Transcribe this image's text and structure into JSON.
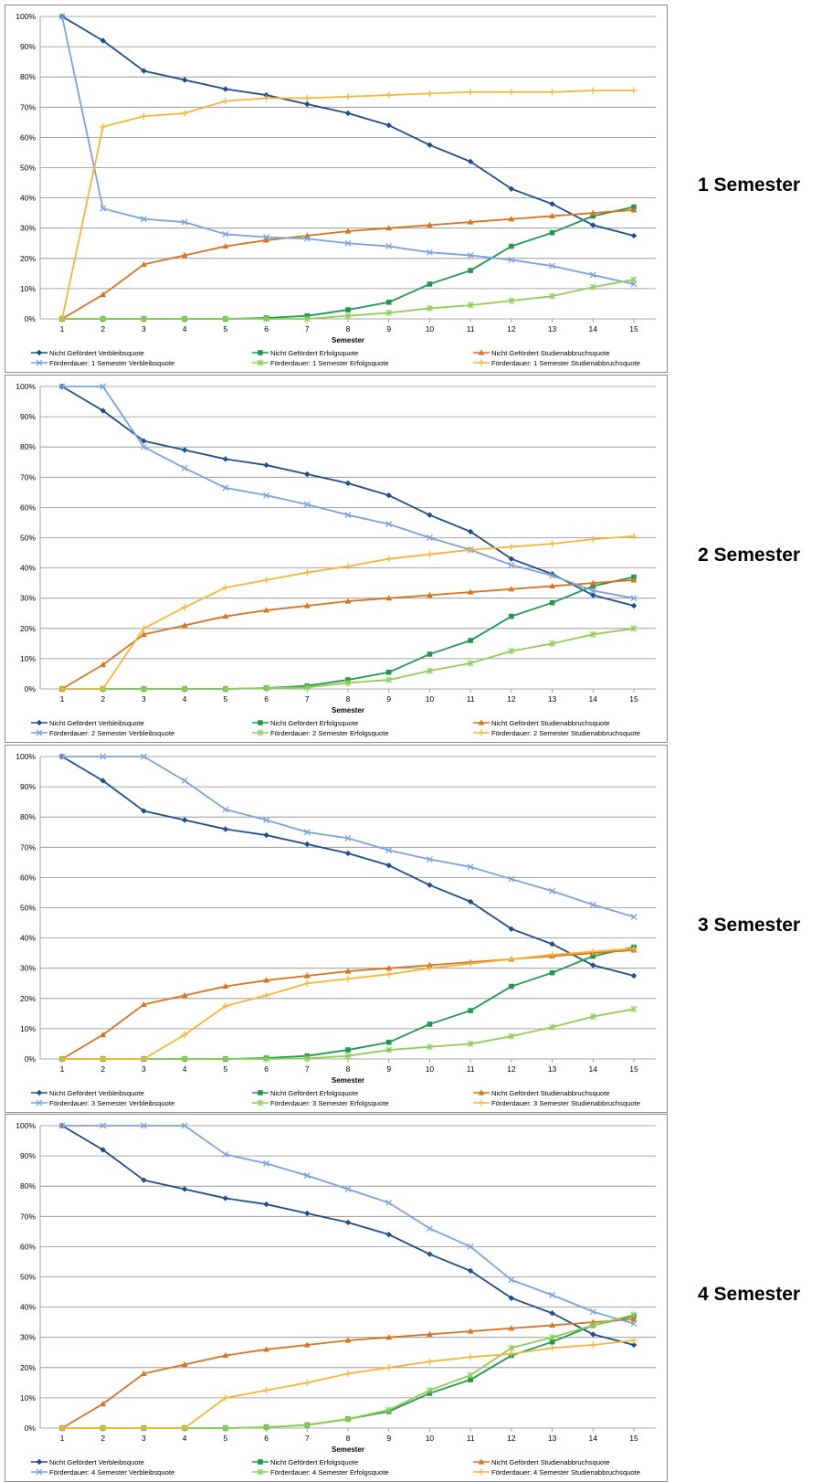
{
  "colors": {
    "nicht_verbleib": "#1f4e8c",
    "nicht_erfolg": "#1f9a4c",
    "nicht_abbruch": "#d9731e",
    "f_verbleib": "#7aa2dc",
    "f_erfolg": "#8fce55",
    "f_abbruch": "#f7b538",
    "grid": "#8c8c8c"
  },
  "chart_data": [
    {
      "type": "line",
      "side_label": "1 Semester",
      "xlabel": "Semester",
      "ylim": [
        0,
        100
      ],
      "yticks": [
        "0%",
        "10%",
        "20%",
        "30%",
        "40%",
        "50%",
        "60%",
        "70%",
        "80%",
        "90%",
        "100%"
      ],
      "x": [
        1,
        2,
        3,
        4,
        5,
        6,
        7,
        8,
        9,
        10,
        11,
        12,
        13,
        14,
        15
      ],
      "legend": "bottom",
      "series": [
        {
          "name": "Nicht Gefördert Verbleibsquote",
          "color": "nicht_verbleib",
          "marker": "diamond",
          "values": [
            100,
            92,
            82,
            79,
            76,
            74,
            71,
            68,
            64,
            57.5,
            52,
            43,
            38,
            31,
            27.5
          ]
        },
        {
          "name": "Nicht Gefördert Erfolgsquote",
          "color": "nicht_erfolg",
          "marker": "square",
          "values": [
            0,
            0,
            0,
            0,
            0,
            0.3,
            1,
            3,
            5.5,
            11.5,
            16,
            24,
            28.5,
            34,
            37
          ]
        },
        {
          "name": "Nicht Gefördert Studienabbruchsquote",
          "color": "nicht_abbruch",
          "marker": "triangle",
          "values": [
            0,
            8,
            18,
            21,
            24,
            26,
            27.5,
            29,
            30,
            31,
            32,
            33,
            34,
            35,
            36
          ]
        },
        {
          "name": "Förderdauer: 1 Semester Verbleibsquote",
          "color": "f_verbleib",
          "marker": "x",
          "values": [
            100,
            36.5,
            33,
            32,
            28,
            27,
            26.5,
            25,
            24,
            22,
            21,
            19.5,
            17.5,
            14.5,
            11.5
          ]
        },
        {
          "name": "Förderdauer: 1 Semester Erfolgsquote",
          "color": "f_erfolg",
          "marker": "star",
          "values": [
            0,
            0,
            0,
            0,
            0,
            0,
            0,
            1,
            2,
            3.5,
            4.5,
            6,
            7.5,
            10.5,
            13
          ]
        },
        {
          "name": "Förderdauer: 1 Semester Studienabbruchsquote",
          "color": "f_abbruch",
          "marker": "plus",
          "values": [
            0,
            63.5,
            67,
            68,
            72,
            73,
            73,
            73.5,
            74,
            74.5,
            75,
            75,
            75,
            75.5,
            75.5
          ]
        }
      ]
    },
    {
      "type": "line",
      "side_label": "2 Semester",
      "xlabel": "Semester",
      "ylim": [
        0,
        100
      ],
      "yticks": [
        "0%",
        "10%",
        "20%",
        "30%",
        "40%",
        "50%",
        "60%",
        "70%",
        "80%",
        "90%",
        "100%"
      ],
      "x": [
        1,
        2,
        3,
        4,
        5,
        6,
        7,
        8,
        9,
        10,
        11,
        12,
        13,
        14,
        15
      ],
      "legend": "bottom",
      "series": [
        {
          "name": "Nicht Gefördert Verbleibsquote",
          "color": "nicht_verbleib",
          "marker": "diamond",
          "values": [
            100,
            92,
            82,
            79,
            76,
            74,
            71,
            68,
            64,
            57.5,
            52,
            43,
            38,
            31,
            27.5
          ]
        },
        {
          "name": "Nicht Gefördert Erfolgsquote",
          "color": "nicht_erfolg",
          "marker": "square",
          "values": [
            0,
            0,
            0,
            0,
            0,
            0.3,
            1,
            3,
            5.5,
            11.5,
            16,
            24,
            28.5,
            34,
            37
          ]
        },
        {
          "name": "Nicht Gefördert Studienabbruchsquote",
          "color": "nicht_abbruch",
          "marker": "triangle",
          "values": [
            0,
            8,
            18,
            21,
            24,
            26,
            27.5,
            29,
            30,
            31,
            32,
            33,
            34,
            35,
            36
          ]
        },
        {
          "name": "Förderdauer: 2 Semester Verbleibsquote",
          "color": "f_verbleib",
          "marker": "x",
          "values": [
            100,
            100,
            80,
            73,
            66.5,
            64,
            61,
            57.5,
            54.5,
            50,
            46,
            41,
            37.5,
            32.5,
            30
          ]
        },
        {
          "name": "Förderdauer: 2 Semester Erfolgsquote",
          "color": "f_erfolg",
          "marker": "star",
          "values": [
            0,
            0,
            0,
            0,
            0,
            0.3,
            0.5,
            2,
            3,
            6,
            8.5,
            12.5,
            15,
            18,
            20
          ]
        },
        {
          "name": "Förderdauer: 2 Semester Studienabbruchsquote",
          "color": "f_abbruch",
          "marker": "plus",
          "values": [
            0,
            0,
            20,
            27,
            33.5,
            36,
            38.5,
            40.5,
            43,
            44.5,
            46,
            47,
            48,
            49.5,
            50.5
          ]
        }
      ]
    },
    {
      "type": "line",
      "side_label": "3 Semester",
      "xlabel": "Semester",
      "ylim": [
        0,
        100
      ],
      "yticks": [
        "0%",
        "10%",
        "20%",
        "30%",
        "40%",
        "50%",
        "60%",
        "70%",
        "80%",
        "90%",
        "100%"
      ],
      "x": [
        1,
        2,
        3,
        4,
        5,
        6,
        7,
        8,
        9,
        10,
        11,
        12,
        13,
        14,
        15
      ],
      "legend": "bottom",
      "series": [
        {
          "name": "Nicht Gefördert Verbleibsquote",
          "color": "nicht_verbleib",
          "marker": "diamond",
          "values": [
            100,
            92,
            82,
            79,
            76,
            74,
            71,
            68,
            64,
            57.5,
            52,
            43,
            38,
            31,
            27.5
          ]
        },
        {
          "name": "Nicht Gefördert Erfolgsquote",
          "color": "nicht_erfolg",
          "marker": "square",
          "values": [
            0,
            0,
            0,
            0,
            0,
            0.3,
            1,
            3,
            5.5,
            11.5,
            16,
            24,
            28.5,
            34,
            37
          ]
        },
        {
          "name": "Nicht Gefördert Studienabbruchsquote",
          "color": "nicht_abbruch",
          "marker": "triangle",
          "values": [
            0,
            8,
            18,
            21,
            24,
            26,
            27.5,
            29,
            30,
            31,
            32,
            33,
            34,
            35,
            36
          ]
        },
        {
          "name": "Förderdauer: 3 Semester Verbleibsquote",
          "color": "f_verbleib",
          "marker": "x",
          "values": [
            100,
            100,
            100,
            92,
            82.5,
            79,
            75,
            73,
            69,
            66,
            63.5,
            59.5,
            55.5,
            51,
            47
          ]
        },
        {
          "name": "Förderdauer: 3 Semester Erfolgsquote",
          "color": "f_erfolg",
          "marker": "star",
          "values": [
            0,
            0,
            0,
            0,
            0,
            0,
            0.2,
            1,
            3,
            4,
            5,
            7.5,
            10.5,
            14,
            16.5
          ]
        },
        {
          "name": "Förderdauer: 3 Semester Studienabbruchsquote",
          "color": "f_abbruch",
          "marker": "plus",
          "values": [
            0,
            0,
            0,
            8,
            17.5,
            21,
            25,
            26.5,
            28,
            30,
            31.5,
            33,
            34.5,
            35.5,
            36.5
          ]
        }
      ]
    },
    {
      "type": "line",
      "side_label": "4 Semester",
      "xlabel": "Semester",
      "ylim": [
        0,
        100
      ],
      "yticks": [
        "0%",
        "10%",
        "20%",
        "30%",
        "40%",
        "50%",
        "60%",
        "70%",
        "80%",
        "90%",
        "100%"
      ],
      "x": [
        1,
        2,
        3,
        4,
        5,
        6,
        7,
        8,
        9,
        10,
        11,
        12,
        13,
        14,
        15
      ],
      "legend": "bottom",
      "series": [
        {
          "name": "Nicht Gefördert Verbleibsquote",
          "color": "nicht_verbleib",
          "marker": "diamond",
          "values": [
            100,
            92,
            82,
            79,
            76,
            74,
            71,
            68,
            64,
            57.5,
            52,
            43,
            38,
            31,
            27.5
          ]
        },
        {
          "name": "Nicht Gefördert Erfolgsquote",
          "color": "nicht_erfolg",
          "marker": "square",
          "values": [
            0,
            0,
            0,
            0,
            0,
            0.3,
            1,
            3,
            5.5,
            11.5,
            16,
            24,
            28.5,
            34,
            37
          ]
        },
        {
          "name": "Nicht Gefördert Studienabbruchsquote",
          "color": "nicht_abbruch",
          "marker": "triangle",
          "values": [
            0,
            8,
            18,
            21,
            24,
            26,
            27.5,
            29,
            30,
            31,
            32,
            33,
            34,
            35,
            36
          ]
        },
        {
          "name": "Förderdauer: 4 Semester Verbleibsquote",
          "color": "f_verbleib",
          "marker": "x",
          "values": [
            100,
            100,
            100,
            100,
            90.5,
            87.5,
            83.5,
            79,
            74.5,
            66,
            60,
            49,
            44,
            38.5,
            34.5
          ]
        },
        {
          "name": "Förderdauer: 4 Semester Erfolgsquote",
          "color": "f_erfolg",
          "marker": "star",
          "values": [
            0,
            0,
            0,
            0,
            0,
            0.3,
            1,
            3,
            6,
            12.5,
            17.5,
            26.5,
            30,
            34,
            37.5
          ]
        },
        {
          "name": "Förderdauer: 4 Semester Studienabbruchsquote",
          "color": "f_abbruch",
          "marker": "plus",
          "values": [
            0,
            0,
            0,
            0,
            10,
            12.5,
            15,
            18,
            20,
            22,
            23.5,
            24.5,
            26.5,
            27.5,
            29
          ]
        }
      ]
    }
  ]
}
